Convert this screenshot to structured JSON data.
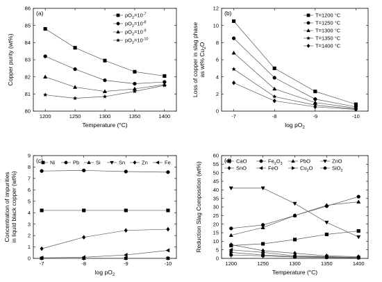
{
  "chart_data": [
    {
      "type": "line",
      "panel": "(a)",
      "xlabel": "Temperature (°C)",
      "ylabel": "Copper purity (wt%)",
      "x": [
        1200,
        1250,
        1300,
        1350,
        1400
      ],
      "xticks": [
        "1200",
        "1250",
        "1300",
        "1350",
        "1400"
      ],
      "xlim": [
        1180,
        1420
      ],
      "ylim": [
        80,
        86
      ],
      "yticks": [
        80,
        81,
        82,
        83,
        84,
        85,
        86
      ],
      "legend_position": "top-right",
      "series": [
        {
          "name": "pO2=10-7",
          "marker": "square",
          "values": [
            84.8,
            83.7,
            82.95,
            82.3,
            82.05
          ]
        },
        {
          "name": "pO2=10-8",
          "marker": "circle",
          "values": [
            83.2,
            82.45,
            81.8,
            81.6,
            81.7
          ]
        },
        {
          "name": "pO2=10-9",
          "marker": "triangle-up",
          "values": [
            82.0,
            81.4,
            81.15,
            81.3,
            81.55
          ]
        },
        {
          "name": "pO2=10-10",
          "marker": "star",
          "values": [
            80.95,
            80.75,
            80.85,
            81.15,
            81.5
          ]
        }
      ]
    },
    {
      "type": "line",
      "panel": "(b)",
      "xlabel": "log pO2",
      "ylabel": "Loss of copper in slag phase as wt% Cu2O",
      "x": [
        -7,
        -8,
        -9,
        -10
      ],
      "xticks": [
        "-7",
        "-8",
        "-9",
        "-10"
      ],
      "xlim": [
        -6.7,
        -10.3
      ],
      "ylim": [
        0,
        12
      ],
      "yticks": [
        0,
        2,
        4,
        6,
        8,
        10,
        12
      ],
      "legend_position": "top-right",
      "series": [
        {
          "name": "T=1200 °C",
          "marker": "square",
          "values": [
            10.5,
            5.0,
            2.3,
            0.8
          ]
        },
        {
          "name": "T=1250 °C",
          "marker": "circle",
          "values": [
            8.5,
            3.9,
            1.4,
            0.5
          ]
        },
        {
          "name": "T=1300 °C",
          "marker": "triangle-up",
          "values": [
            6.8,
            2.6,
            1.0,
            0.35
          ]
        },
        {
          "name": "T=1350 °C",
          "marker": "star",
          "values": [
            4.9,
            1.7,
            0.7,
            0.25
          ]
        },
        {
          "name": "T=1400 °C",
          "marker": "diamond",
          "values": [
            3.3,
            1.2,
            0.5,
            0.2
          ]
        }
      ]
    },
    {
      "type": "line",
      "panel": "(c)",
      "xlabel": "log pO2",
      "ylabel": "Concentration of impurities in liquid black copper (wt%)",
      "x": [
        -7,
        -8,
        -9,
        -10
      ],
      "xticks": [
        "-7",
        "-8",
        "-9",
        "-10"
      ],
      "xlim": [
        -6.8,
        -10.2
      ],
      "ylim": [
        0,
        9
      ],
      "yticks": [
        0,
        1,
        2,
        3,
        4,
        5,
        6,
        7,
        8,
        9
      ],
      "legend_position": "top",
      "series": [
        {
          "name": "Ni",
          "marker": "square",
          "values": [
            4.2,
            4.2,
            4.2,
            4.2
          ]
        },
        {
          "name": "Pb",
          "marker": "circle",
          "values": [
            7.65,
            7.7,
            7.6,
            7.55
          ]
        },
        {
          "name": "Si",
          "marker": "triangle-up",
          "values": [
            0.02,
            0.02,
            0.02,
            0.02
          ]
        },
        {
          "name": "Sn",
          "marker": "triangle-down",
          "values": [
            0.0,
            0.0,
            0.0,
            0.0
          ]
        },
        {
          "name": "Zn",
          "marker": "diamond",
          "values": [
            0.85,
            1.85,
            2.45,
            2.55
          ]
        },
        {
          "name": "Fe",
          "marker": "triangle-left",
          "values": [
            0.05,
            0.1,
            0.3,
            0.7
          ]
        }
      ]
    },
    {
      "type": "line",
      "panel": "(d)",
      "xlabel": "Temperature (°C)",
      "ylabel": "Reduction Slag Composition (wt%)",
      "x": [
        1200,
        1250,
        1300,
        1350,
        1400
      ],
      "xticks": [
        "1200",
        "1250",
        "1300",
        "1350",
        "1400"
      ],
      "xlim": [
        1185,
        1415
      ],
      "ylim": [
        0,
        60
      ],
      "yticks": [
        0,
        5,
        10,
        15,
        20,
        25,
        30,
        35,
        40,
        45,
        50,
        55,
        60
      ],
      "legend_position": "top",
      "series": [
        {
          "name": "CaO",
          "marker": "square",
          "values": [
            7.5,
            8.5,
            11,
            14,
            16
          ]
        },
        {
          "name": "Fe2O3",
          "marker": "circle",
          "values": [
            17.5,
            19.5,
            25,
            30.5,
            36
          ]
        },
        {
          "name": "PbO",
          "marker": "triangle-up",
          "values": [
            13.5,
            18,
            25,
            31,
            33
          ]
        },
        {
          "name": "ZnO",
          "marker": "triangle-down",
          "values": [
            41,
            41,
            32,
            21,
            12.5
          ]
        },
        {
          "name": "SnO",
          "marker": "diamond",
          "values": [
            8,
            4.5,
            3,
            1.5,
            1
          ]
        },
        {
          "name": "FeO",
          "marker": "triangle-left",
          "values": [
            5,
            3.5,
            1.5,
            1,
            0.5
          ]
        },
        {
          "name": "Cu2O",
          "marker": "triangle-right",
          "values": [
            3.5,
            2,
            1,
            0.8,
            0.5
          ]
        },
        {
          "name": "SiO2",
          "marker": "hexagon",
          "values": [
            2,
            1.5,
            0.8,
            0.5,
            0.3
          ]
        }
      ]
    }
  ]
}
